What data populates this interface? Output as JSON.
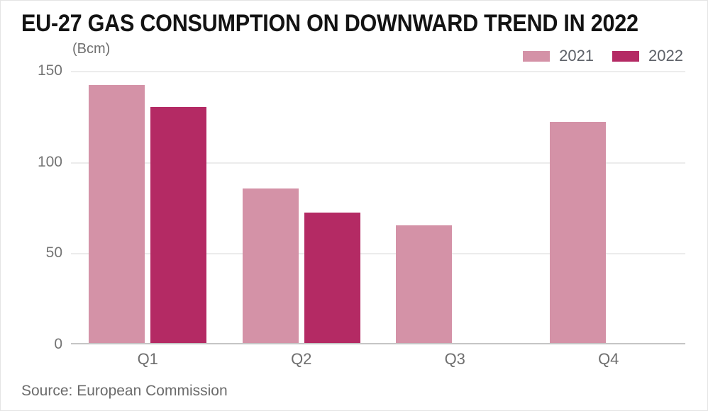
{
  "header": {
    "title": "EU-27 GAS CONSUMPTION ON DOWNWARD TREND IN 2022"
  },
  "chart_data": {
    "type": "bar",
    "title": "EU-27 GAS CONSUMPTION ON DOWNWARD TREND IN 2022",
    "unit_label": "(Bcm)",
    "categories": [
      "Q1",
      "Q2",
      "Q3",
      "Q4"
    ],
    "series": [
      {
        "name": "2021",
        "color": "#d492a7",
        "values": [
          142,
          85,
          65,
          122
        ]
      },
      {
        "name": "2022",
        "color": "#b42a64",
        "values": [
          130,
          72,
          null,
          null
        ]
      }
    ],
    "ylabel": "(Bcm)",
    "ylim": [
      0,
      150
    ],
    "yticks": [
      0,
      50,
      100,
      150
    ],
    "grid": true,
    "legend_position": "top-right",
    "source": "Source: European Commission"
  },
  "colors": {
    "bar_2021": "#d492a7",
    "bar_2022": "#b42a64",
    "gridline": "#ececec",
    "axis_line": "#c5c5c5",
    "title_text": "#131313",
    "tick_text": "#747474",
    "legend_text": "#5d6168",
    "source_text": "#6b6b6b"
  }
}
